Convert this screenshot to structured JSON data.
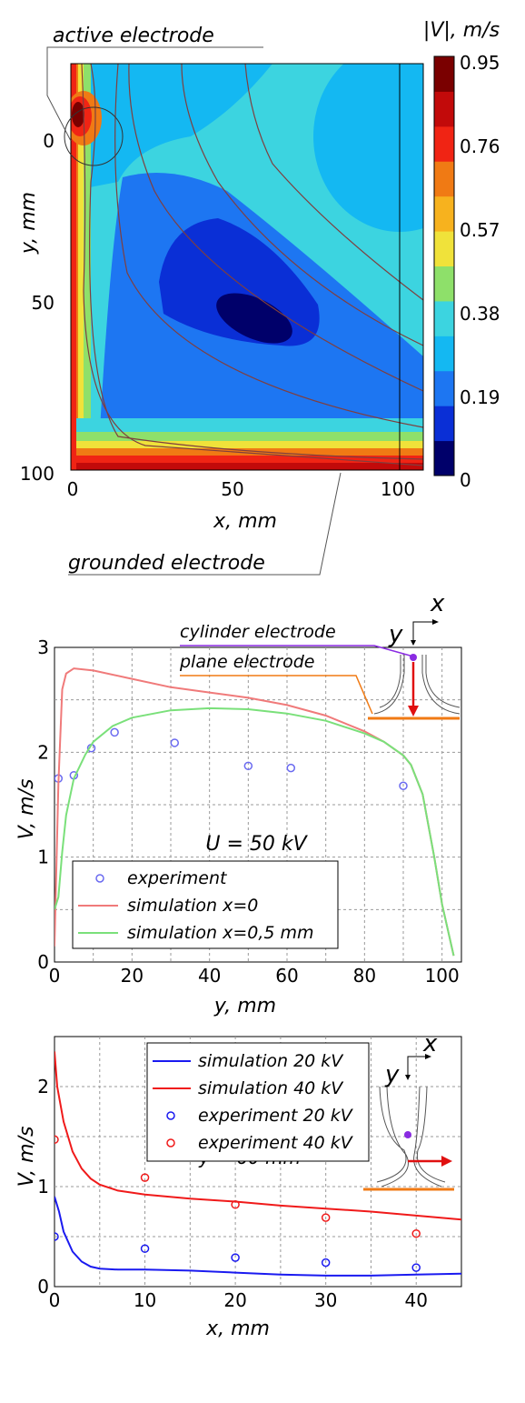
{
  "chart_data": [
    {
      "type": "heatmap",
      "xlabel": "x, mm",
      "ylabel": "y, mm",
      "xticks": [
        "0",
        "50",
        "100"
      ],
      "yticks": [
        "0",
        "50",
        "100"
      ],
      "xlim": [
        0,
        110
      ],
      "ylim": [
        100,
        -18
      ],
      "colorbar_title": "|V|, m/s",
      "colorbar_ticks": [
        "0.95",
        "0.76",
        "0.57",
        "0.38",
        "0.19",
        "0"
      ],
      "colorbar_levels": [
        "#00006a",
        "#0a2fd6",
        "#1d76f2",
        "#14b8f2",
        "#3cd4e0",
        "#8ee06a",
        "#f0e23a",
        "#f7b21e",
        "#f07a14",
        "#f02414",
        "#c20a0a",
        "#7a0000"
      ],
      "annotations": [
        "active electrode",
        "grounded electrode"
      ]
    },
    {
      "type": "line",
      "title": "U = 50 kV",
      "xlabel": "y, mm",
      "ylabel": "V, m/s",
      "xlim": [
        0,
        105
      ],
      "ylim": [
        0,
        3
      ],
      "xticks": [
        "0",
        "20",
        "40",
        "60",
        "80",
        "100"
      ],
      "yticks": [
        "0",
        "1",
        "2",
        "3"
      ],
      "grid": true,
      "legend": "bottom-left",
      "inset_labels": [
        "cylinder electrode",
        "plane electrode",
        "x",
        "y"
      ],
      "series": [
        {
          "name": "experiment",
          "kind": "scatter",
          "color": "#6a6af0",
          "x": [
            1,
            5,
            9.5,
            15.5,
            31,
            50,
            61,
            90
          ],
          "y": [
            1.75,
            1.78,
            2.04,
            2.19,
            2.09,
            1.87,
            1.85,
            1.68
          ]
        },
        {
          "name": "simulation x=0",
          "kind": "line",
          "color": "#f07a7a",
          "x": [
            0,
            1,
            2,
            3,
            5,
            10,
            20,
            30,
            40,
            50,
            60,
            70,
            80,
            85,
            90,
            92,
            95,
            98,
            100,
            103
          ],
          "y": [
            0.15,
            1.7,
            2.6,
            2.75,
            2.8,
            2.78,
            2.7,
            2.62,
            2.57,
            2.52,
            2.45,
            2.35,
            2.2,
            2.1,
            1.97,
            1.88,
            1.6,
            1.0,
            0.55,
            0.06
          ]
        },
        {
          "name": "simulation x=0,5 mm",
          "kind": "line",
          "color": "#7ae07a",
          "x": [
            0,
            1,
            2,
            3,
            5,
            8,
            10,
            15,
            20,
            30,
            40,
            50,
            60,
            70,
            80,
            85,
            90,
            92,
            95,
            98,
            100,
            103
          ],
          "y": [
            0.5,
            0.62,
            1.05,
            1.4,
            1.75,
            1.98,
            2.1,
            2.25,
            2.33,
            2.4,
            2.42,
            2.41,
            2.37,
            2.3,
            2.18,
            2.1,
            1.97,
            1.88,
            1.6,
            1.0,
            0.55,
            0.06
          ]
        }
      ]
    },
    {
      "type": "line",
      "title": "y = 60 mm",
      "xlabel": "x, mm",
      "ylabel": "V, m/s",
      "xlim": [
        0,
        45
      ],
      "ylim": [
        0,
        2.5
      ],
      "xticks": [
        "0",
        "10",
        "20",
        "30",
        "40"
      ],
      "yticks": [
        "0",
        "1",
        "2"
      ],
      "grid": true,
      "legend": "top-left",
      "inset_labels": [
        "x",
        "y"
      ],
      "series": [
        {
          "name": "simulation 20 kV",
          "kind": "line",
          "color": "#1a1af0",
          "x": [
            0,
            0.5,
            1,
            2,
            3,
            4,
            5,
            7,
            10,
            15,
            20,
            25,
            30,
            35,
            40,
            45
          ],
          "y": [
            0.9,
            0.75,
            0.55,
            0.35,
            0.25,
            0.2,
            0.18,
            0.17,
            0.17,
            0.16,
            0.14,
            0.12,
            0.11,
            0.11,
            0.12,
            0.13
          ]
        },
        {
          "name": "simulation 40 kV",
          "kind": "line",
          "color": "#f01a1a",
          "x": [
            0,
            0.3,
            1,
            2,
            3,
            4,
            5,
            7,
            10,
            15,
            20,
            25,
            30,
            35,
            40,
            45
          ],
          "y": [
            2.35,
            2.0,
            1.65,
            1.35,
            1.18,
            1.08,
            1.02,
            0.96,
            0.92,
            0.88,
            0.85,
            0.81,
            0.78,
            0.75,
            0.71,
            0.67
          ]
        },
        {
          "name": "experiment 20 kV",
          "kind": "scatter",
          "color": "#1a1af0",
          "x": [
            0,
            10,
            20,
            30,
            40
          ],
          "y": [
            0.5,
            0.38,
            0.29,
            0.24,
            0.19
          ]
        },
        {
          "name": "experiment 40 kV",
          "kind": "scatter",
          "color": "#f01a1a",
          "x": [
            0,
            10,
            20,
            30,
            40
          ],
          "y": [
            1.47,
            1.09,
            0.82,
            0.69,
            0.53
          ]
        }
      ]
    }
  ]
}
